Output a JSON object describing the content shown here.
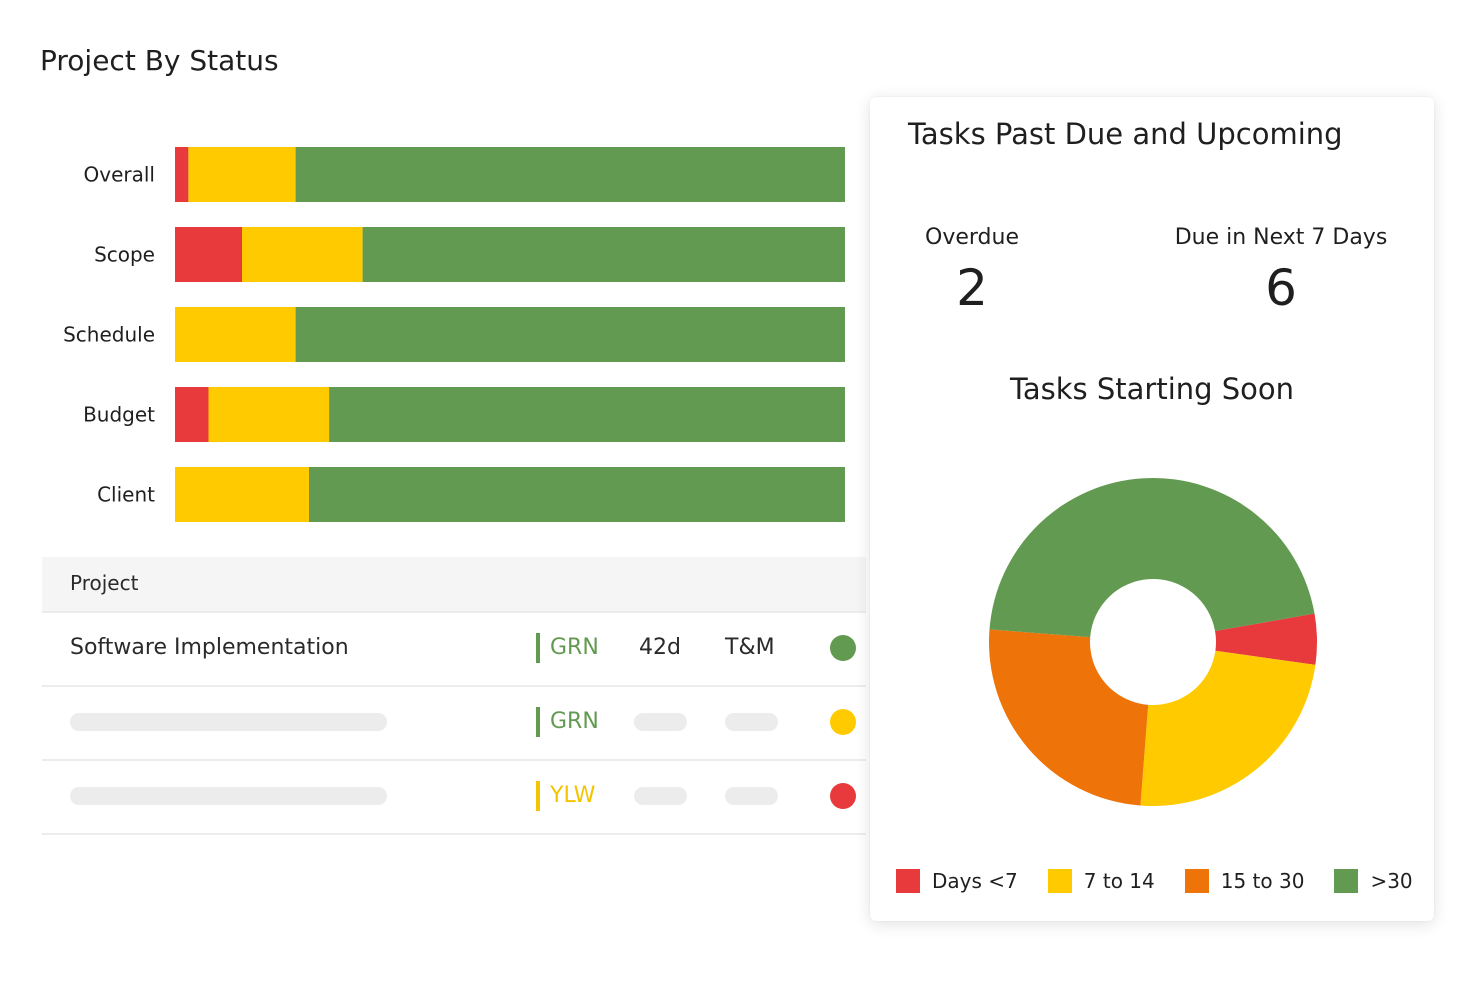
{
  "page": {
    "title": "Project By Status"
  },
  "colors": {
    "red": "#e8393c",
    "yellow": "#ffcb00",
    "orange": "#ee7309",
    "green": "#639a51",
    "status_green": "#639a51",
    "status_yellow": "#f5c400"
  },
  "chart_data": [
    {
      "type": "bar",
      "orientation": "horizontal",
      "stacked": true,
      "normalized": true,
      "title": "",
      "categories": [
        "Overall",
        "Scope",
        "Schedule",
        "Budget",
        "Client"
      ],
      "series": [
        {
          "color": "#e8393c",
          "values": [
            2,
            10,
            0,
            5,
            0
          ]
        },
        {
          "color": "#ffcb00",
          "values": [
            16,
            18,
            18,
            18,
            20
          ]
        },
        {
          "color": "#639a51",
          "values": [
            82,
            72,
            82,
            77,
            80
          ]
        }
      ],
      "xlim": [
        0,
        100
      ],
      "grid": false,
      "legend": "none"
    },
    {
      "type": "pie",
      "donut": true,
      "title": "Tasks Starting Soon",
      "categories": [
        "Days <7",
        "7 to 14",
        "15 to 30",
        ">30"
      ],
      "values": [
        5,
        24,
        25,
        46
      ],
      "colors": [
        "#e8393c",
        "#ffcb00",
        "#ee7309",
        "#639a51"
      ],
      "legend": "bottom"
    }
  ],
  "table": {
    "header": {
      "project": "Project"
    },
    "rows": [
      {
        "name": "Software Implementation",
        "status": "GRN",
        "status_tone": "green",
        "days": "42d",
        "type": "T&M",
        "health": "green"
      },
      {
        "name": "",
        "status": "GRN",
        "status_tone": "green",
        "days": "",
        "type": "",
        "health": "yellow"
      },
      {
        "name": "",
        "status": "YLW",
        "status_tone": "yellow",
        "days": "",
        "type": "",
        "health": "red"
      }
    ]
  },
  "card": {
    "title": "Tasks Past Due and Upcoming",
    "overdue": {
      "label": "Overdue",
      "value": "2"
    },
    "due_next": {
      "label": "Due in Next 7 Days",
      "value": "6"
    },
    "donut_title": "Tasks Starting Soon",
    "legend": [
      {
        "label": "Days <7",
        "color": "#e8393c"
      },
      {
        "label": "7 to 14",
        "color": "#ffcb00"
      },
      {
        "label": "15 to 30",
        "color": "#ee7309"
      },
      {
        "label": ">30",
        "color": "#639a51"
      }
    ]
  }
}
